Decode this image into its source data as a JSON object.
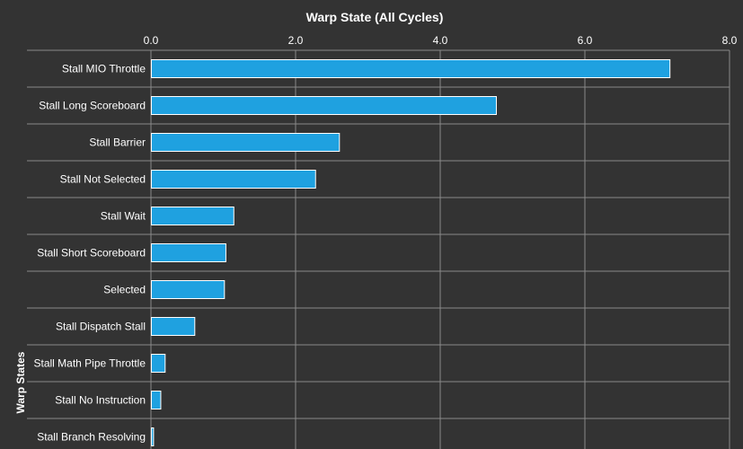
{
  "chart_data": {
    "type": "bar",
    "orientation": "horizontal",
    "title": "Warp State (All Cycles)",
    "xlabel": "",
    "ylabel": "Warp States",
    "xlim": [
      0,
      8
    ],
    "xticks": [
      "0.0",
      "2.0",
      "4.0",
      "6.0",
      "8.0"
    ],
    "grid": true,
    "categories": [
      "Stall MIO Throttle",
      "Stall Long Scoreboard",
      "Stall Barrier",
      "Stall Not Selected",
      "Stall Wait",
      "Stall Short Scoreboard",
      "Selected",
      "Stall Dispatch Stall",
      "Stall Math Pipe Throttle",
      "Stall No Instruction",
      "Stall Branch Resolving"
    ],
    "values": [
      7.17,
      4.77,
      2.6,
      2.27,
      1.14,
      1.03,
      1.01,
      0.6,
      0.19,
      0.13,
      0.03
    ],
    "colors": {
      "background": "#333333",
      "bar": "#1fa1e0",
      "bar_border": "#ffffff",
      "grid": "#8a8a8a",
      "text": "#ffffff"
    }
  }
}
